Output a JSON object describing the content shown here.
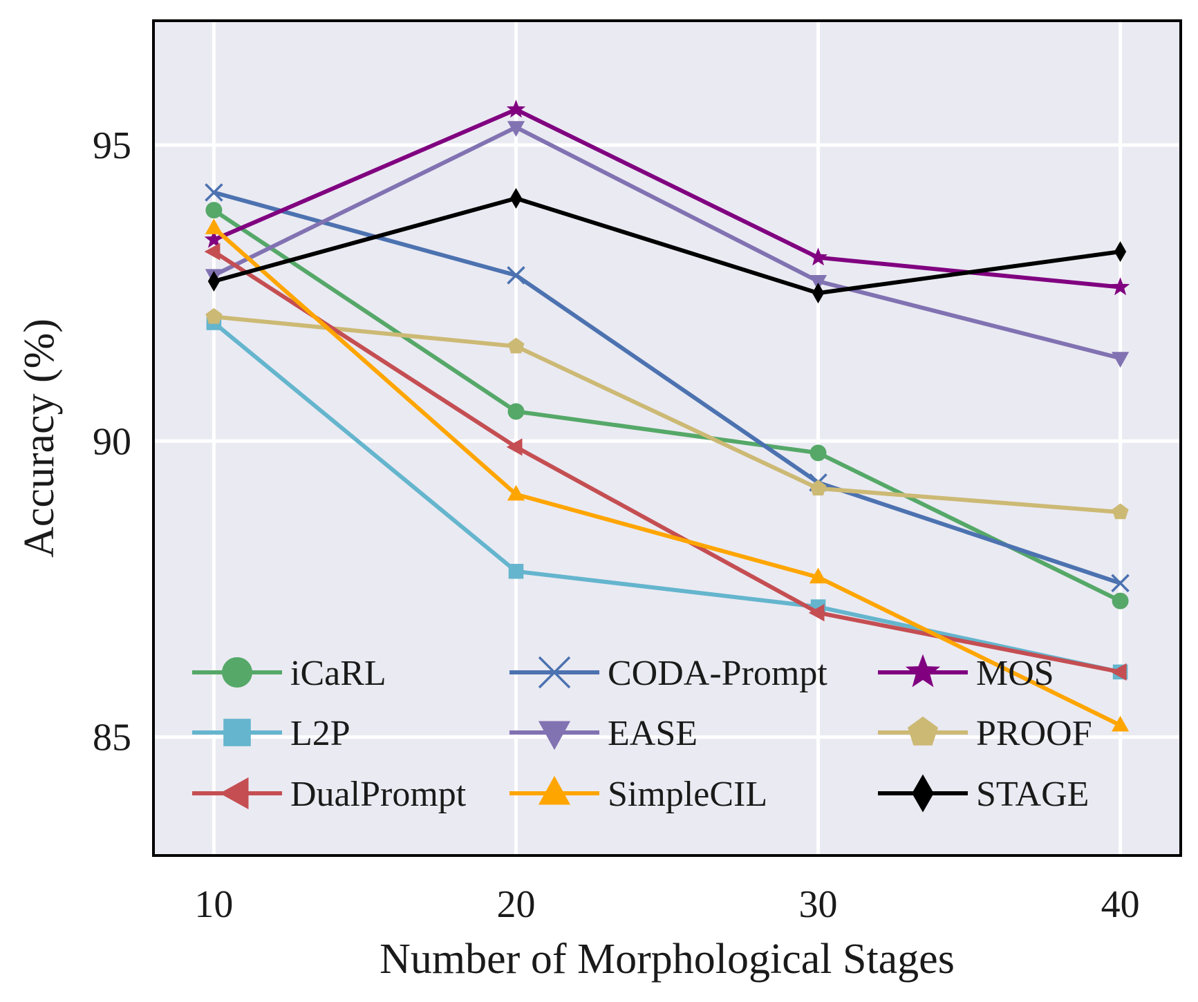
{
  "chart_data": {
    "type": "line",
    "title": "",
    "xlabel": "Number of Morphological Stages",
    "ylabel": "Accuracy (%)",
    "x": [
      10,
      20,
      30,
      40
    ],
    "xticks": [
      "10",
      "20",
      "30",
      "40"
    ],
    "yticks": [
      "85",
      "90",
      "95"
    ],
    "xlim": [
      8,
      42
    ],
    "ylim": [
      83,
      97.1
    ],
    "grid": true,
    "legend_position": "lower-center",
    "series": [
      {
        "name": "iCaRL",
        "values": [
          93.9,
          90.5,
          89.8,
          87.3
        ],
        "color": "#55a868",
        "marker": "circle"
      },
      {
        "name": "CODA-Prompt",
        "values": [
          94.2,
          92.8,
          89.3,
          87.6
        ],
        "color": "#4c72b0",
        "marker": "x"
      },
      {
        "name": "MOS",
        "values": [
          93.4,
          95.6,
          93.1,
          92.6
        ],
        "color": "#800080",
        "marker": "star"
      },
      {
        "name": "L2P",
        "values": [
          92.0,
          87.8,
          87.2,
          86.1
        ],
        "color": "#64b5cd",
        "marker": "square"
      },
      {
        "name": "EASE",
        "values": [
          92.8,
          95.3,
          92.7,
          91.4
        ],
        "color": "#8172b2",
        "marker": "triangle-down"
      },
      {
        "name": "PROOF",
        "values": [
          92.1,
          91.6,
          89.2,
          88.8
        ],
        "color": "#ccb974",
        "marker": "pentagon"
      },
      {
        "name": "DualPrompt",
        "values": [
          93.2,
          89.9,
          87.1,
          86.1
        ],
        "color": "#c44e52",
        "marker": "triangle-left"
      },
      {
        "name": "SimpleCIL",
        "values": [
          93.6,
          89.1,
          87.7,
          85.2
        ],
        "color": "#ffa500",
        "marker": "triangle-up"
      },
      {
        "name": "STAGE",
        "values": [
          92.7,
          94.1,
          92.5,
          93.2
        ],
        "color": "#000000",
        "marker": "diamond"
      }
    ]
  }
}
